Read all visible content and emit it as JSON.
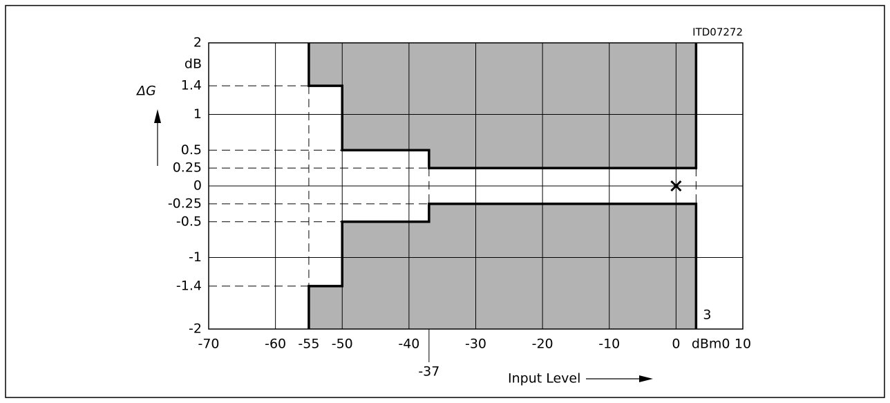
{
  "chart_data": {
    "type": "mask",
    "id_label": "ITD07272",
    "y_label": "ΔG",
    "y_unit": "dB",
    "x_label": "Input Level",
    "x_unit": "dBm0",
    "xlim": [
      -70,
      10
    ],
    "ylim": [
      -2,
      2
    ],
    "xticks": [
      -70,
      -60,
      -50,
      -40,
      -30,
      -20,
      -10,
      0,
      10
    ],
    "xmarks": [
      -55,
      -37
    ],
    "yticks": [
      -2,
      -1,
      0,
      1,
      2
    ],
    "ymarks": [
      1.4,
      0.5,
      0.25,
      -0.25,
      -0.5,
      -1.4
    ],
    "grid": true,
    "fill_color": "#b3b3b3",
    "series": [
      {
        "x": [
          -55,
          -55,
          -50,
          -50,
          -37,
          -37,
          3,
          3
        ],
        "values": [
          2,
          1.4,
          1.4,
          0.5,
          0.5,
          0.25,
          0.25,
          2
        ]
      },
      {
        "x": [
          -55,
          -55,
          -50,
          -50,
          -37,
          -37,
          3,
          3
        ],
        "values": [
          -2,
          -1.4,
          -1.4,
          -0.5,
          -0.5,
          -0.25,
          -0.25,
          -2
        ]
      }
    ],
    "point": {
      "x": 0,
      "y": 0
    },
    "end_label": {
      "x": 3,
      "label": "3"
    }
  }
}
